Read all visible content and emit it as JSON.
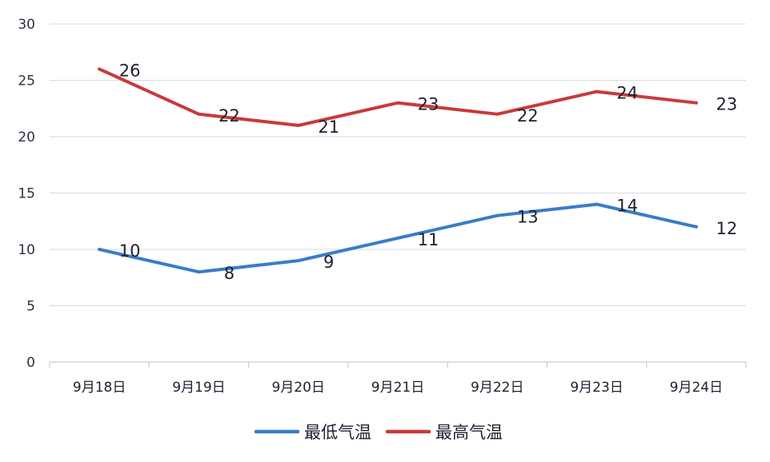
{
  "chart_data": {
    "type": "line",
    "categories": [
      "9月18日",
      "9月19日",
      "9月20日",
      "9月21日",
      "9月22日",
      "9月23日",
      "9月24日"
    ],
    "series": [
      {
        "name": "最低气温",
        "values": [
          10,
          8,
          9,
          11,
          13,
          14,
          12
        ],
        "color": "#3a7cc8"
      },
      {
        "name": "最高气温",
        "values": [
          26,
          22,
          21,
          23,
          22,
          24,
          23
        ],
        "color": "#c83a38"
      }
    ],
    "ylim": [
      0,
      30
    ],
    "yticks": [
      0,
      5,
      10,
      15,
      20,
      25,
      30
    ],
    "grid": true,
    "legend": "bottom"
  }
}
